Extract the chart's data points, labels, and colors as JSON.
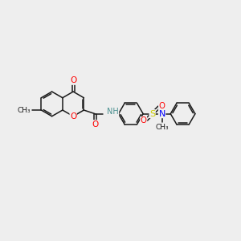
{
  "bg_color": "#eeeeee",
  "bond_color": "#1a1a1a",
  "atom_colors": {
    "O": "#ff0000",
    "N": "#0000ff",
    "S": "#cccc00",
    "NH": "#4a9090",
    "C": "#1a1a1a"
  },
  "font_size": 7.0,
  "bond_width": 1.1,
  "r_hex": 0.52,
  "bl": 0.52,
  "figsize": [
    3.0,
    3.0
  ],
  "dpi": 100,
  "xlim": [
    0,
    10
  ],
  "ylim": [
    1,
    9
  ]
}
